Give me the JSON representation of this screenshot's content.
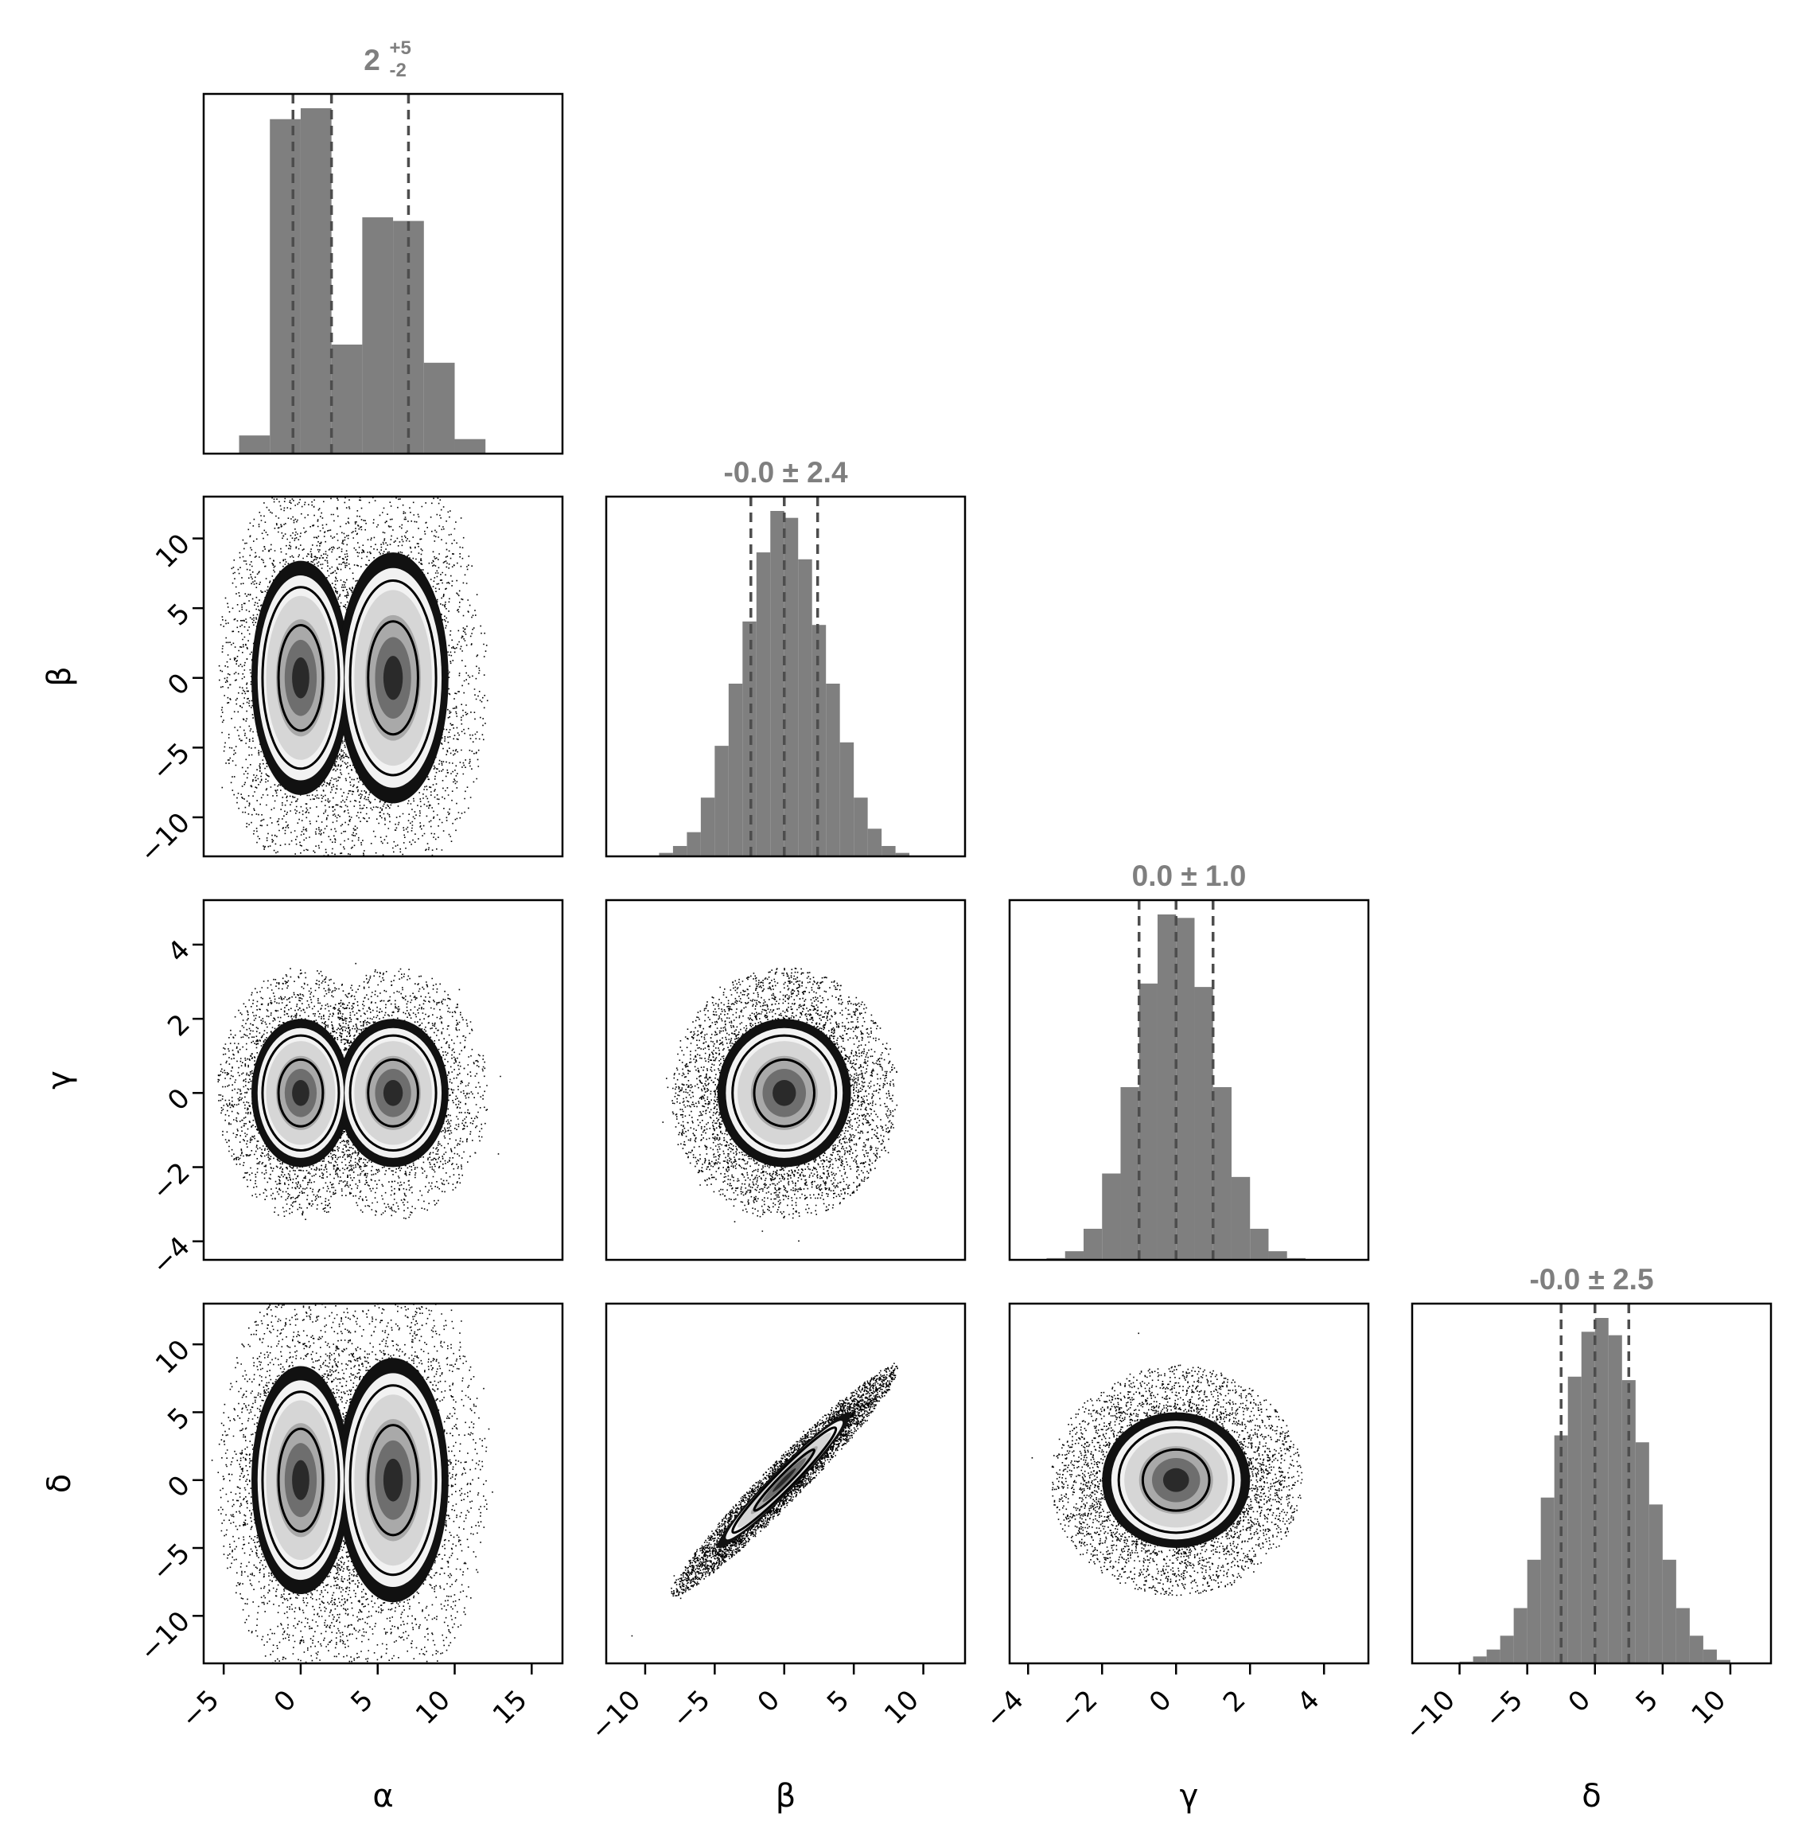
{
  "chart_data": {
    "type": "corner",
    "parameters": [
      "α",
      "β",
      "γ",
      "δ"
    ],
    "axes": {
      "alpha": {
        "label": "α",
        "range": [
          -6.3,
          17
        ],
        "ticks": [
          -5,
          0,
          5,
          10,
          15
        ],
        "tick_labels": [
          "−5",
          "0",
          "5",
          "10",
          "15"
        ]
      },
      "beta": {
        "label": "β",
        "range": [
          -12.8,
          13
        ],
        "ticks": [
          -10,
          -5,
          0,
          5,
          10
        ],
        "tick_labels": [
          "−10",
          "−5",
          "0",
          "5",
          "10"
        ]
      },
      "gamma": {
        "label": "γ",
        "range": [
          -4.5,
          5.2
        ],
        "ticks": [
          -4,
          -2,
          0,
          2,
          4
        ],
        "tick_labels": [
          "−4",
          "−2",
          "0",
          "2",
          "4"
        ]
      },
      "delta": {
        "label": "δ",
        "range": [
          -13.5,
          13
        ],
        "ticks": [
          -10,
          -5,
          0,
          5,
          10
        ],
        "tick_labels": [
          "−10",
          "−5",
          "0",
          "5",
          "10"
        ]
      }
    },
    "marginals": [
      {
        "param": "α",
        "title": "2",
        "title_sup": "+5",
        "title_sub": "-2",
        "quantiles": [
          -0.5,
          2.0,
          7.0
        ],
        "bin_edges": [
          -4,
          -2,
          0,
          2,
          4,
          6,
          8,
          10,
          12
        ],
        "counts": [
          0.05,
          0.92,
          0.95,
          0.3,
          0.65,
          0.64,
          0.25,
          0.04
        ]
      },
      {
        "param": "β",
        "title": "-0.0 ± 2.4",
        "quantiles": [
          -2.4,
          0.0,
          2.4
        ],
        "bin_edges": [
          -9,
          -8,
          -7,
          -6,
          -5,
          -4,
          -3,
          -2,
          -1,
          0,
          1,
          2,
          3,
          4,
          5,
          6,
          7,
          8,
          9
        ],
        "counts": [
          0.01,
          0.03,
          0.07,
          0.17,
          0.32,
          0.5,
          0.68,
          0.88,
          1.0,
          0.98,
          0.86,
          0.67,
          0.5,
          0.33,
          0.17,
          0.08,
          0.03,
          0.01
        ]
      },
      {
        "param": "γ",
        "title": "0.0 ± 1.0",
        "quantiles": [
          -1.0,
          0.0,
          1.0
        ],
        "bin_edges": [
          -3.5,
          -3.0,
          -2.5,
          -2.0,
          -1.5,
          -1.0,
          -0.5,
          0.0,
          0.5,
          1.0,
          1.5,
          2.0,
          2.5,
          3.0,
          3.5
        ],
        "counts": [
          0.005,
          0.025,
          0.09,
          0.25,
          0.5,
          0.8,
          1.0,
          0.99,
          0.79,
          0.5,
          0.24,
          0.09,
          0.025,
          0.005
        ]
      },
      {
        "param": "δ",
        "title": "-0.0 ± 2.5",
        "quantiles": [
          -2.5,
          0.0,
          2.5
        ],
        "bin_edges": [
          -10,
          -9,
          -8,
          -7,
          -6,
          -5,
          -4,
          -3,
          -2,
          -1,
          0,
          1,
          2,
          3,
          4,
          5,
          6,
          7,
          8,
          9,
          10
        ],
        "counts": [
          0.005,
          0.02,
          0.04,
          0.08,
          0.16,
          0.3,
          0.48,
          0.66,
          0.83,
          0.96,
          1.0,
          0.95,
          0.82,
          0.64,
          0.46,
          0.3,
          0.16,
          0.08,
          0.04,
          0.01
        ]
      }
    ],
    "joint": [
      {
        "x": "α",
        "y": "β",
        "modes": [
          [
            0,
            0,
            1.6,
            4.2
          ],
          [
            6,
            0,
            1.8,
            4.5
          ]
        ],
        "correlation": 0
      },
      {
        "x": "α",
        "y": "γ",
        "modes": [
          [
            0,
            0,
            1.6,
            1.0
          ],
          [
            6,
            0,
            1.8,
            1.0
          ]
        ],
        "correlation": 0
      },
      {
        "x": "β",
        "y": "γ",
        "modes": [
          [
            0,
            0,
            2.4,
            1.0
          ]
        ],
        "correlation": 0
      },
      {
        "x": "α",
        "y": "δ",
        "modes": [
          [
            0,
            0,
            1.6,
            4.2
          ],
          [
            6,
            0,
            1.8,
            4.5
          ]
        ],
        "correlation": 0
      },
      {
        "x": "β",
        "y": "δ",
        "modes": [
          [
            0,
            0,
            2.4,
            2.5
          ]
        ],
        "correlation": 0.97
      },
      {
        "x": "γ",
        "y": "δ",
        "modes": [
          [
            0,
            0,
            1.0,
            2.5
          ]
        ],
        "correlation": 0
      }
    ],
    "colors": {
      "hist": "#7f7f7f",
      "quantile_line": "#4d4d4d",
      "points": "#000000",
      "contour": "#000000",
      "frame": "#000000"
    },
    "grid": false,
    "legend": "none"
  }
}
